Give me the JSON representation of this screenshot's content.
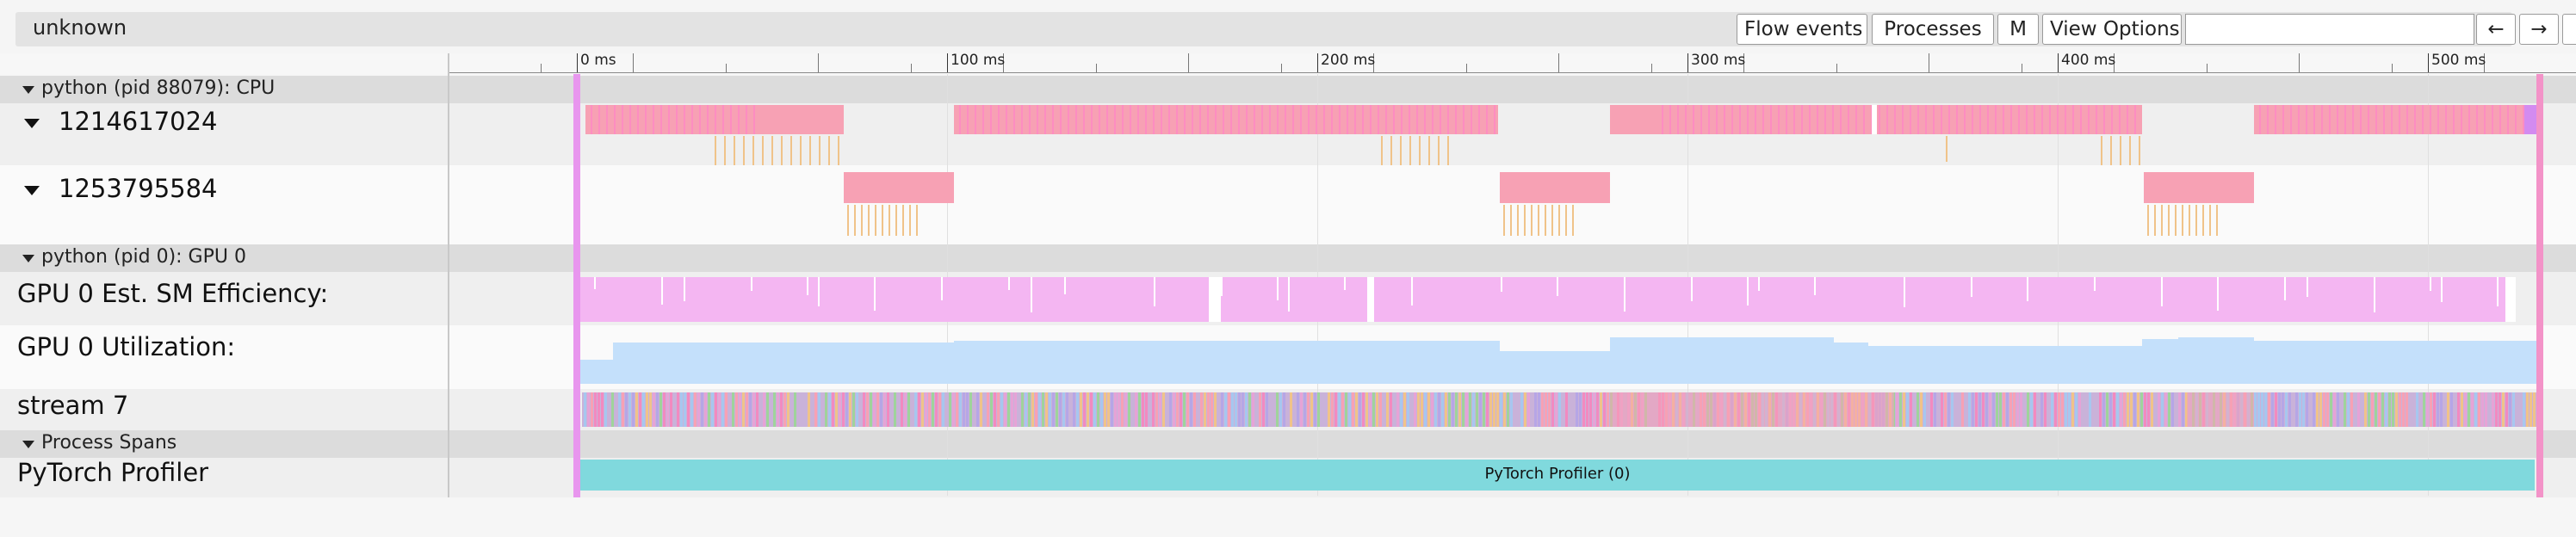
{
  "window": {
    "title": "unknown"
  },
  "toolbar": {
    "flow_events": "Flow events",
    "processes": "Processes",
    "m": "M",
    "view_options": "View Options",
    "search_placeholder": "",
    "prev_arrow": "←",
    "next_arrow": "→"
  },
  "ruler": {
    "ticks": [
      "0 ms",
      "100 ms",
      "200 ms",
      "300 ms",
      "400 ms",
      "500 ms"
    ]
  },
  "tracks": {
    "cpu_header": "python (pid 88079): CPU",
    "thread1": "1214617024",
    "thread2": "1253795584",
    "gpu_header": "python (pid 0): GPU 0",
    "gpu_sm": "GPU 0 Est. SM Efficiency:",
    "gpu_util": "GPU 0 Utilization:",
    "stream": "stream 7",
    "spans_header": "Process Spans",
    "profiler": "PyTorch Profiler",
    "profiler_slice": "PyTorch Profiler (0)"
  },
  "colors": {
    "cpu_slice": "#f7a1b4",
    "cpu_slice_hot": "#ff85c6",
    "cpu_child": "#f0c389",
    "sm_efficiency": "#f4b6f2",
    "utilization": "#c4e0fb",
    "profiler_span": "#80d9dd",
    "vertical_marker": "#e896ee"
  }
}
